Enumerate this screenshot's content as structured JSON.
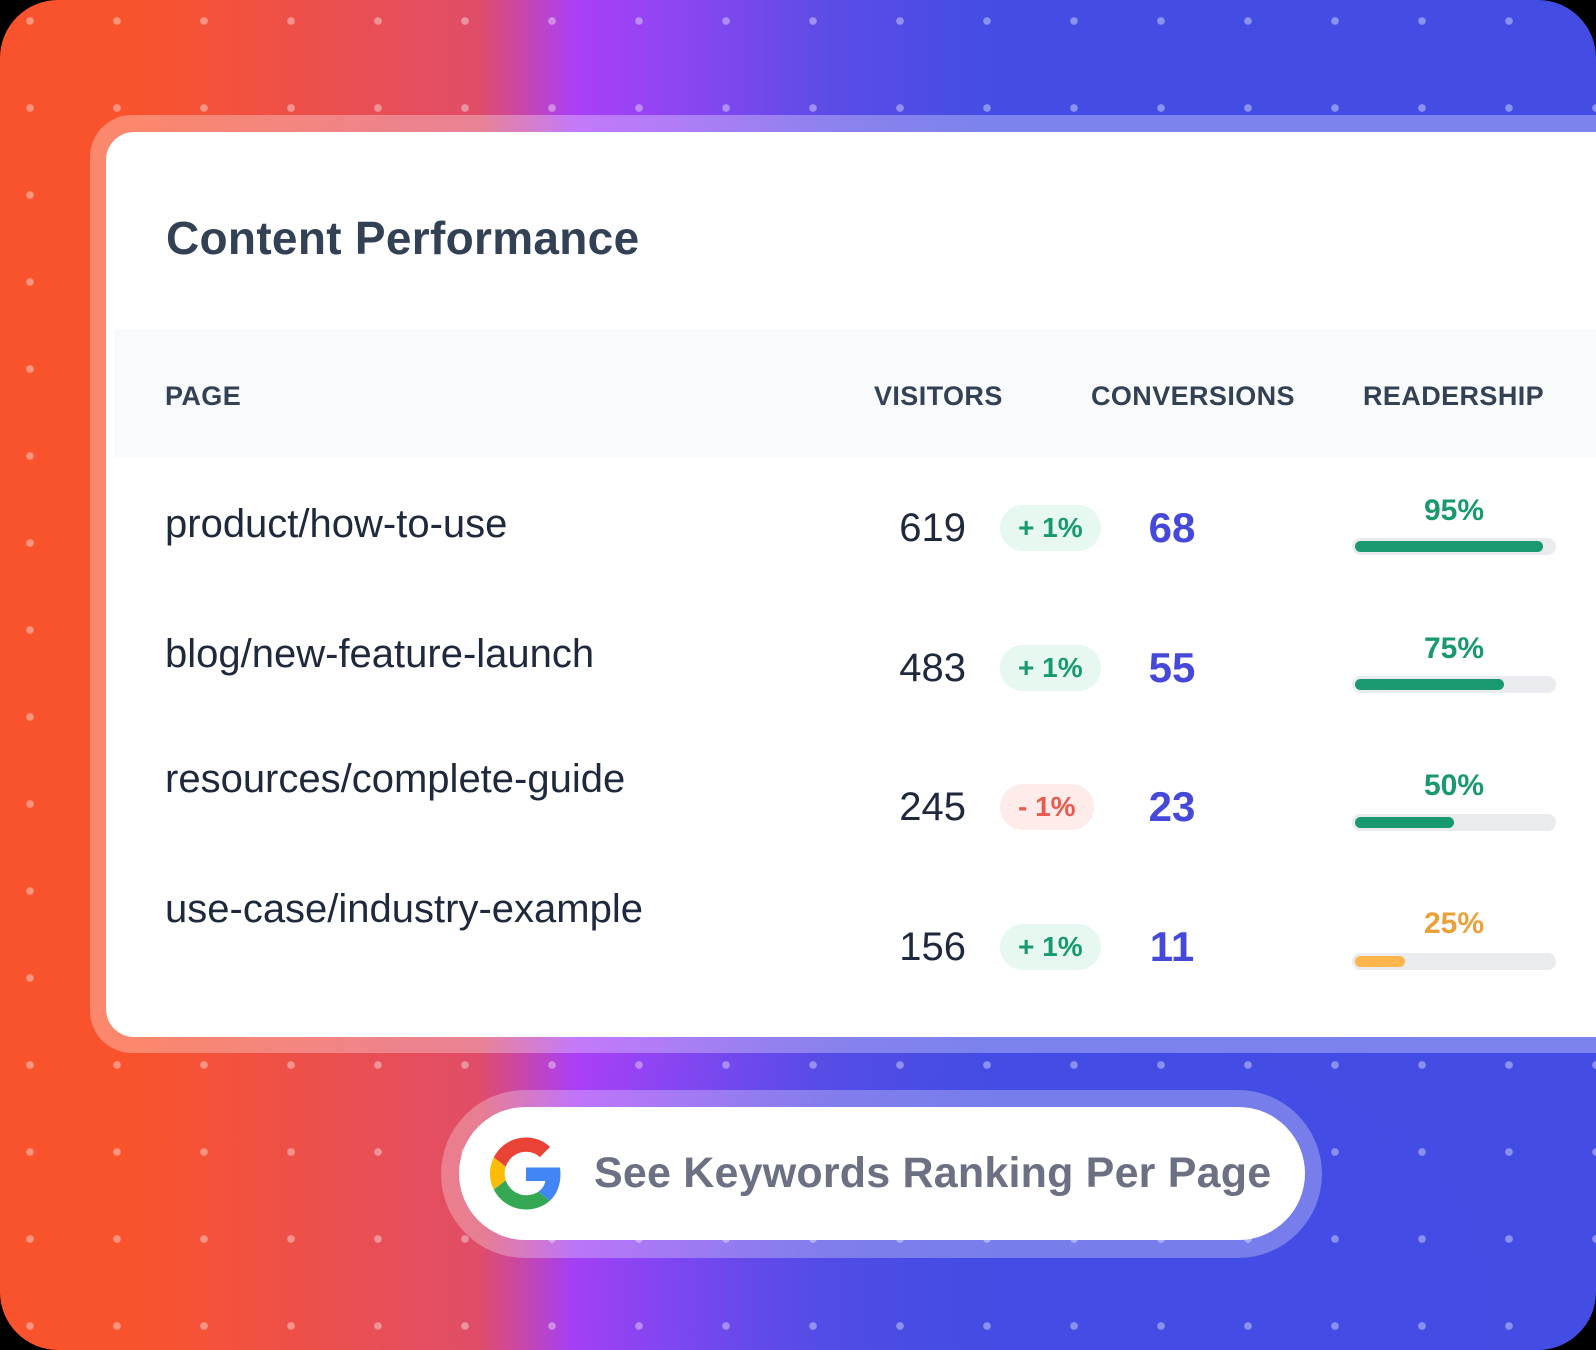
{
  "card": {
    "title": "Content Performance",
    "columns": {
      "page": "PAGE",
      "visitors": "VISITORS",
      "conversions": "CONVERSIONS",
      "readership": "READERSHIP"
    },
    "rows": [
      {
        "page": "product/how-to-use",
        "visitors": "619",
        "change": "+ 1%",
        "trend": "up",
        "conversions": "68",
        "readership": "95%",
        "readership_value": 95,
        "bar_color": "#18996f",
        "label_color": "#18996f"
      },
      {
        "page": "blog/new-feature-launch",
        "visitors": "483",
        "change": "+ 1%",
        "trend": "up",
        "conversions": "55",
        "readership": "75%",
        "readership_value": 75,
        "bar_color": "#18996f",
        "label_color": "#18996f"
      },
      {
        "page": "resources/complete-guide",
        "visitors": "245",
        "change": "- 1%",
        "trend": "down",
        "conversions": "23",
        "readership": "50%",
        "readership_value": 50,
        "bar_color": "#18996f",
        "label_color": "#18996f"
      },
      {
        "page": "use-case/industry-example",
        "visitors": "156",
        "change": "+ 1%",
        "trend": "up",
        "conversions": "11",
        "readership": "25%",
        "readership_value": 25,
        "bar_color": "#fdb54c",
        "label_color": "#eba13a"
      }
    ]
  },
  "cta": {
    "icon": "google-g-icon",
    "label": "See Keywords Ranking Per Page"
  },
  "colors": {
    "accent_conversions": "#4548d8",
    "positive": "#18996f",
    "negative": "#ea5a4e",
    "warning": "#fdb54c",
    "gradient_start": "#f9532e",
    "gradient_mid": "#aa3ff7",
    "gradient_end": "#434de4"
  }
}
